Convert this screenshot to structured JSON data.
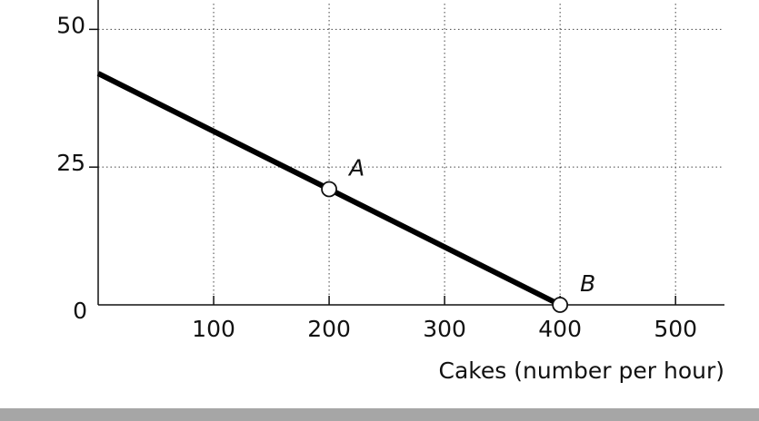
{
  "chart_data": {
    "type": "line",
    "x_label": "Cakes (number per hour)",
    "x": [
      0,
      200,
      400
    ],
    "series": [
      {
        "color": "#000000",
        "values": [
          42,
          21,
          0
        ]
      }
    ],
    "annotations": [
      {
        "text": "A",
        "x": 200,
        "y": 21
      },
      {
        "text": "B",
        "x": 400,
        "y": 0
      }
    ],
    "xlim": [
      0,
      540
    ],
    "xticks": [
      100,
      200,
      300,
      400,
      500
    ],
    "ylim": [
      0,
      55
    ],
    "yticks": [
      0,
      25,
      50
    ],
    "grid": true
  }
}
